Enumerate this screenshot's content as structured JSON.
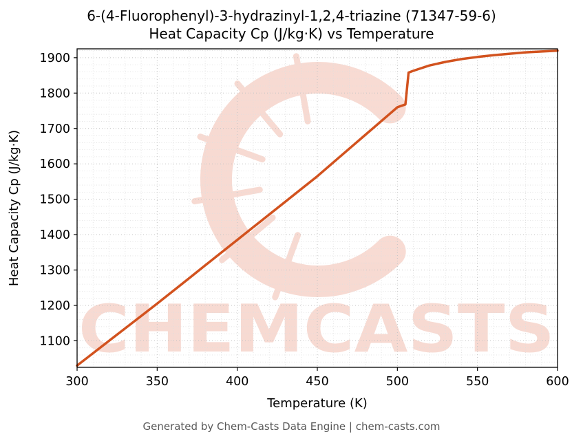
{
  "chart_data": {
    "type": "line",
    "title_line1": "6-(4-Fluorophenyl)-3-hydrazinyl-1,2,4-triazine (71347-59-6)",
    "title_line2": "Heat Capacity Cp (J/kg·K) vs Temperature",
    "xlabel": "Temperature (K)",
    "ylabel": "Heat Capacity Cp (J/kg·K)",
    "xlim": [
      300,
      600
    ],
    "ylim": [
      1025,
      1925
    ],
    "x_ticks": [
      300,
      350,
      400,
      450,
      500,
      550,
      600
    ],
    "y_ticks": [
      1100,
      1200,
      1300,
      1400,
      1500,
      1600,
      1700,
      1800,
      1900
    ],
    "x_minor_step": 10,
    "y_minor_step": 20,
    "grid": true,
    "legend": "none",
    "series": [
      {
        "name": "Heat Capacity Cp",
        "color": "#d2521e",
        "points": [
          [
            300,
            1030
          ],
          [
            310,
            1065
          ],
          [
            320,
            1100
          ],
          [
            330,
            1135
          ],
          [
            340,
            1170
          ],
          [
            350,
            1205
          ],
          [
            360,
            1241
          ],
          [
            370,
            1277
          ],
          [
            380,
            1313
          ],
          [
            390,
            1349
          ],
          [
            400,
            1385
          ],
          [
            410,
            1421
          ],
          [
            420,
            1457
          ],
          [
            430,
            1493
          ],
          [
            440,
            1529
          ],
          [
            450,
            1565
          ],
          [
            460,
            1604
          ],
          [
            470,
            1643
          ],
          [
            480,
            1682
          ],
          [
            490,
            1721
          ],
          [
            500,
            1760
          ],
          [
            505,
            1768
          ],
          [
            507,
            1858
          ],
          [
            510,
            1863
          ],
          [
            520,
            1878
          ],
          [
            530,
            1888
          ],
          [
            540,
            1896
          ],
          [
            550,
            1902
          ],
          [
            560,
            1907
          ],
          [
            580,
            1915
          ],
          [
            600,
            1920
          ]
        ]
      }
    ],
    "watermark": {
      "text": "CHEMCASTS",
      "color": "#f2bdae",
      "logo": "c-ring-logo"
    }
  },
  "footer": {
    "text": "Generated by Chem-Casts Data Engine | chem-casts.com"
  }
}
